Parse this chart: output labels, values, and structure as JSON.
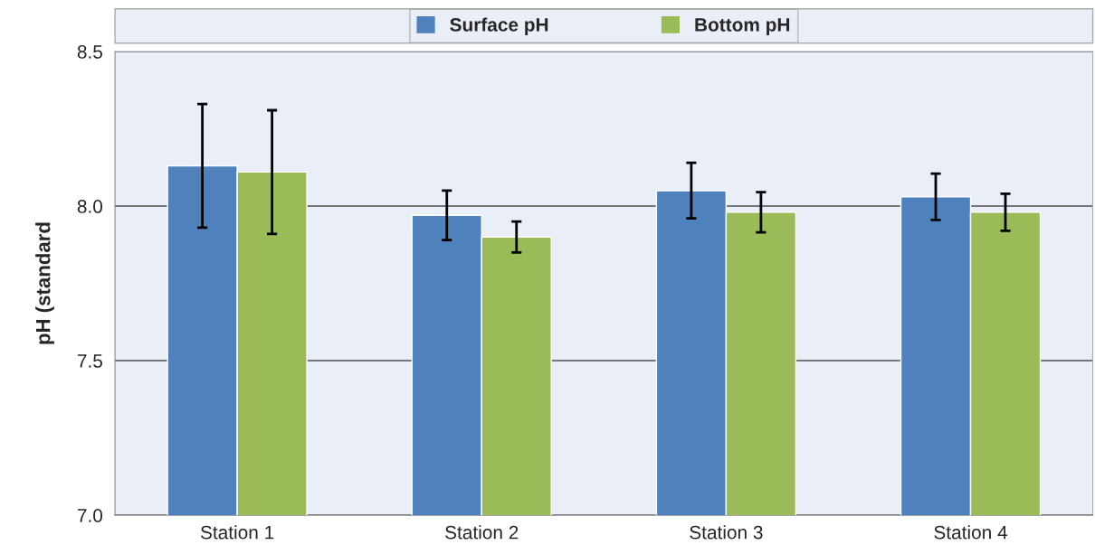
{
  "chart_data": {
    "type": "bar",
    "ylabel": "pH (standard",
    "categories": [
      "Station 1",
      "Station 2",
      "Station 3",
      "Station 4"
    ],
    "series": [
      {
        "name": "Surface pH",
        "color": "#4f81bd",
        "values": [
          8.13,
          7.97,
          8.05,
          8.03
        ],
        "errors": [
          0.2,
          0.08,
          0.09,
          0.075
        ]
      },
      {
        "name": "Bottom pH",
        "color": "#9bbb59",
        "values": [
          8.11,
          7.9,
          7.98,
          7.98
        ],
        "errors": [
          0.2,
          0.05,
          0.065,
          0.06
        ]
      }
    ],
    "ylim": [
      7.0,
      8.5
    ],
    "yticks": [
      {
        "value": 7.0,
        "label": "7.0"
      },
      {
        "value": 7.5,
        "label": "7.5"
      },
      {
        "value": 8.0,
        "label": "8.0"
      },
      {
        "value": 8.5,
        "label": "8.5"
      }
    ],
    "grid": "y",
    "legend": "top"
  }
}
